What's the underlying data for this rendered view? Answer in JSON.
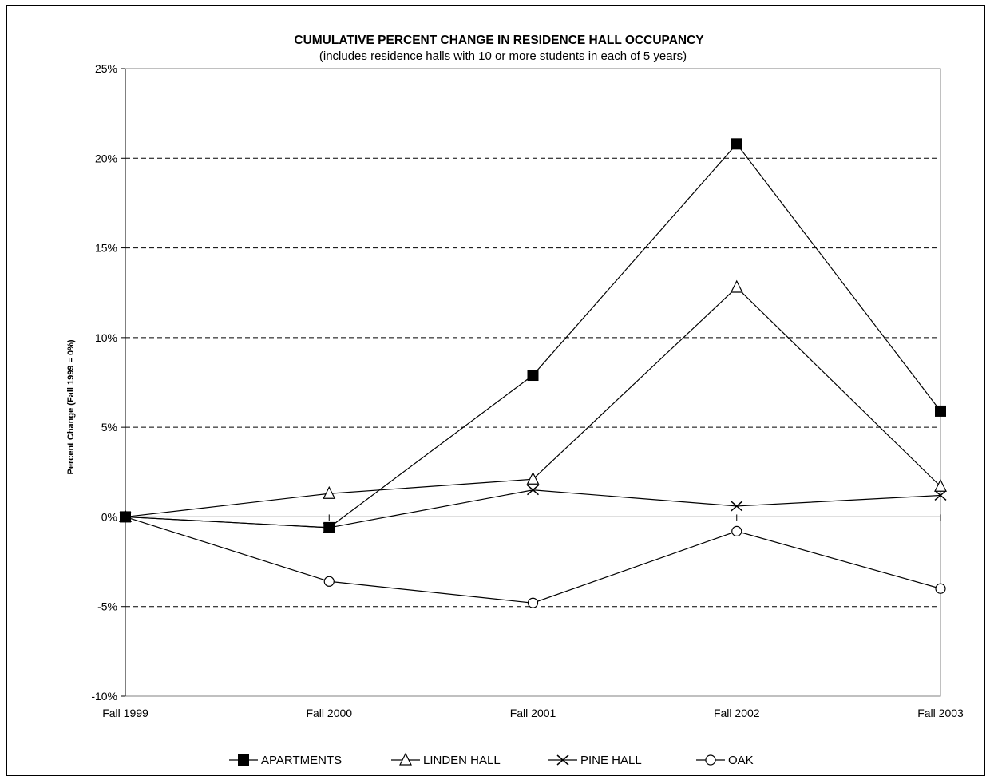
{
  "chart_data": {
    "type": "line",
    "title": "CUMULATIVE PERCENT CHANGE IN RESIDENCE HALL OCCUPANCY",
    "subtitle": "(includes residence halls with 10 or more students in each of 5 years)",
    "ylabel": "Percent Change (Fall 1999 = 0%)",
    "xlabel": "",
    "categories": [
      "Fall 1999",
      "Fall 2000",
      "Fall 2001",
      "Fall 2002",
      "Fall 2003"
    ],
    "y_ticks": [
      25,
      20,
      15,
      10,
      5,
      0,
      -5,
      -10
    ],
    "y_tick_labels": [
      "25%",
      "20%",
      "15%",
      "10%",
      "5%",
      "0%",
      "-5%",
      "-10%"
    ],
    "ylim": [
      -10,
      25
    ],
    "grid": "horizontal dashed",
    "legend_position": "bottom",
    "series": [
      {
        "name": "APARTMENTS",
        "marker": "filled-square",
        "values": [
          0,
          -0.6,
          7.9,
          20.8,
          5.9
        ]
      },
      {
        "name": "LINDEN HALL",
        "marker": "open-triangle",
        "values": [
          0,
          1.3,
          2.1,
          12.8,
          1.7
        ]
      },
      {
        "name": "PINE HALL",
        "marker": "x",
        "values": [
          0,
          -0.6,
          1.5,
          0.6,
          1.2
        ]
      },
      {
        "name": "OAK",
        "marker": "open-circle",
        "values": [
          0,
          -3.6,
          -4.8,
          -0.8,
          -4.0
        ]
      }
    ],
    "line_color": "#000000"
  }
}
